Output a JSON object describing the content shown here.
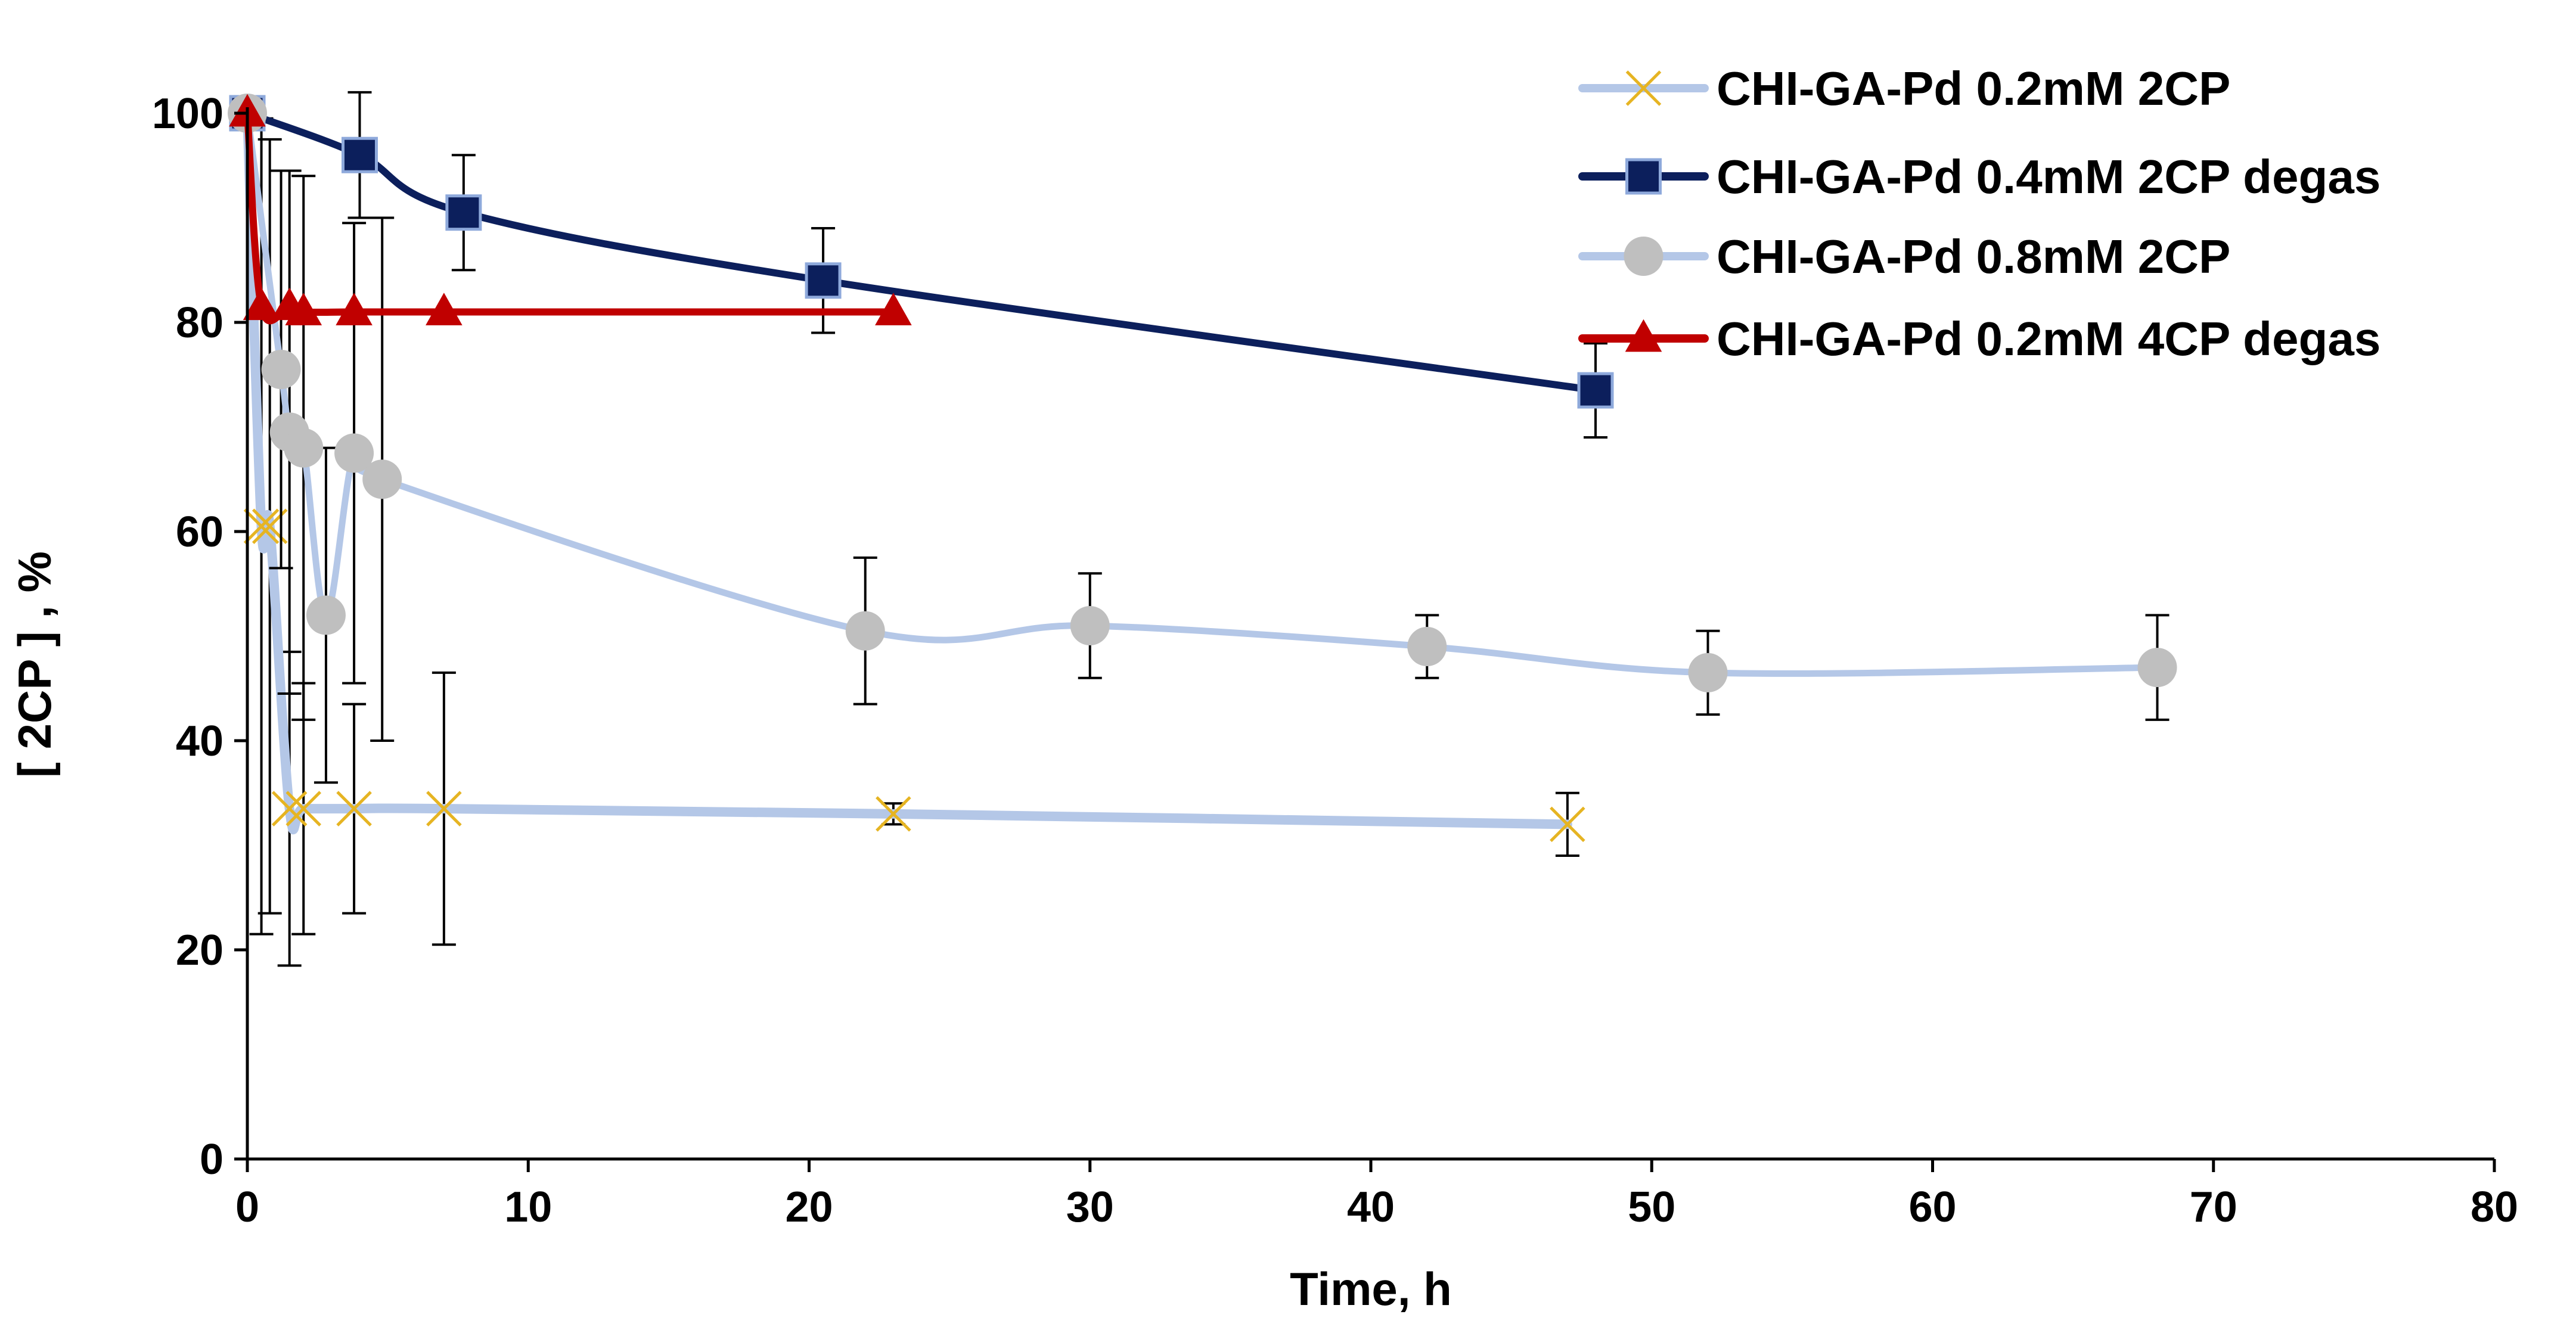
{
  "chart_data": {
    "type": "line",
    "title": "",
    "xlabel": "Time, h",
    "ylabel": "[ 2CP ] , %",
    "xlim": [
      0,
      80
    ],
    "ylim": [
      0,
      100
    ],
    "x_ticks": [
      "0",
      "10",
      "20",
      "30",
      "40",
      "50",
      "60",
      "70",
      "80"
    ],
    "y_ticks": [
      "0",
      "20",
      "40",
      "60",
      "80",
      "100"
    ],
    "grid": false,
    "legend_position": "top-right",
    "series": [
      {
        "name": "CHI-GA-Pd 0.2mM 2CP",
        "marker": "x",
        "line_color": "#B4C7E7",
        "marker_color": "#E6B422",
        "x": [
          0,
          0.5,
          0.8,
          1.5,
          2,
          3.8,
          7,
          23,
          47
        ],
        "y": [
          100,
          60.5,
          60.5,
          33.5,
          33.5,
          33.5,
          33.5,
          33,
          32
        ],
        "err": [
          0,
          39,
          37,
          15,
          12,
          10,
          13,
          1,
          3
        ]
      },
      {
        "name": "CHI-GA-Pd 0.4mM  2CP degas",
        "marker": "square",
        "line_color": "#0C1F5C",
        "marker_color": "#0C1F5C",
        "x": [
          0,
          4,
          7.7,
          20.5,
          48
        ],
        "y": [
          100,
          96,
          90.5,
          84,
          73.5
        ],
        "err": [
          0,
          6,
          5.5,
          5,
          4.5
        ]
      },
      {
        "name": "CHI-GA-Pd 0.8mM 2CP",
        "marker": "circle",
        "line_color": "#B4C7E7",
        "marker_color": "#BFBFBF",
        "x": [
          0,
          1.2,
          1.5,
          2,
          2.8,
          3.8,
          4.8,
          22,
          30,
          42,
          52,
          68
        ],
        "y": [
          100,
          75.5,
          69.5,
          68,
          52,
          67.5,
          65,
          50.5,
          51,
          49,
          46.5,
          47
        ],
        "err": [
          0,
          19,
          25,
          26,
          16,
          22,
          25,
          7,
          5,
          3,
          4,
          5
        ]
      },
      {
        "name": "CHI-GA-Pd 0.2mM 4CP degas",
        "marker": "triangle",
        "line_color": "#C00000",
        "marker_color": "#C00000",
        "x": [
          0,
          0.5,
          1.5,
          2,
          3.8,
          7,
          23
        ],
        "y": [
          100,
          81.5,
          81.5,
          81,
          81,
          81,
          81
        ],
        "err": [
          0,
          0,
          0,
          0,
          0,
          0,
          0
        ]
      }
    ]
  }
}
